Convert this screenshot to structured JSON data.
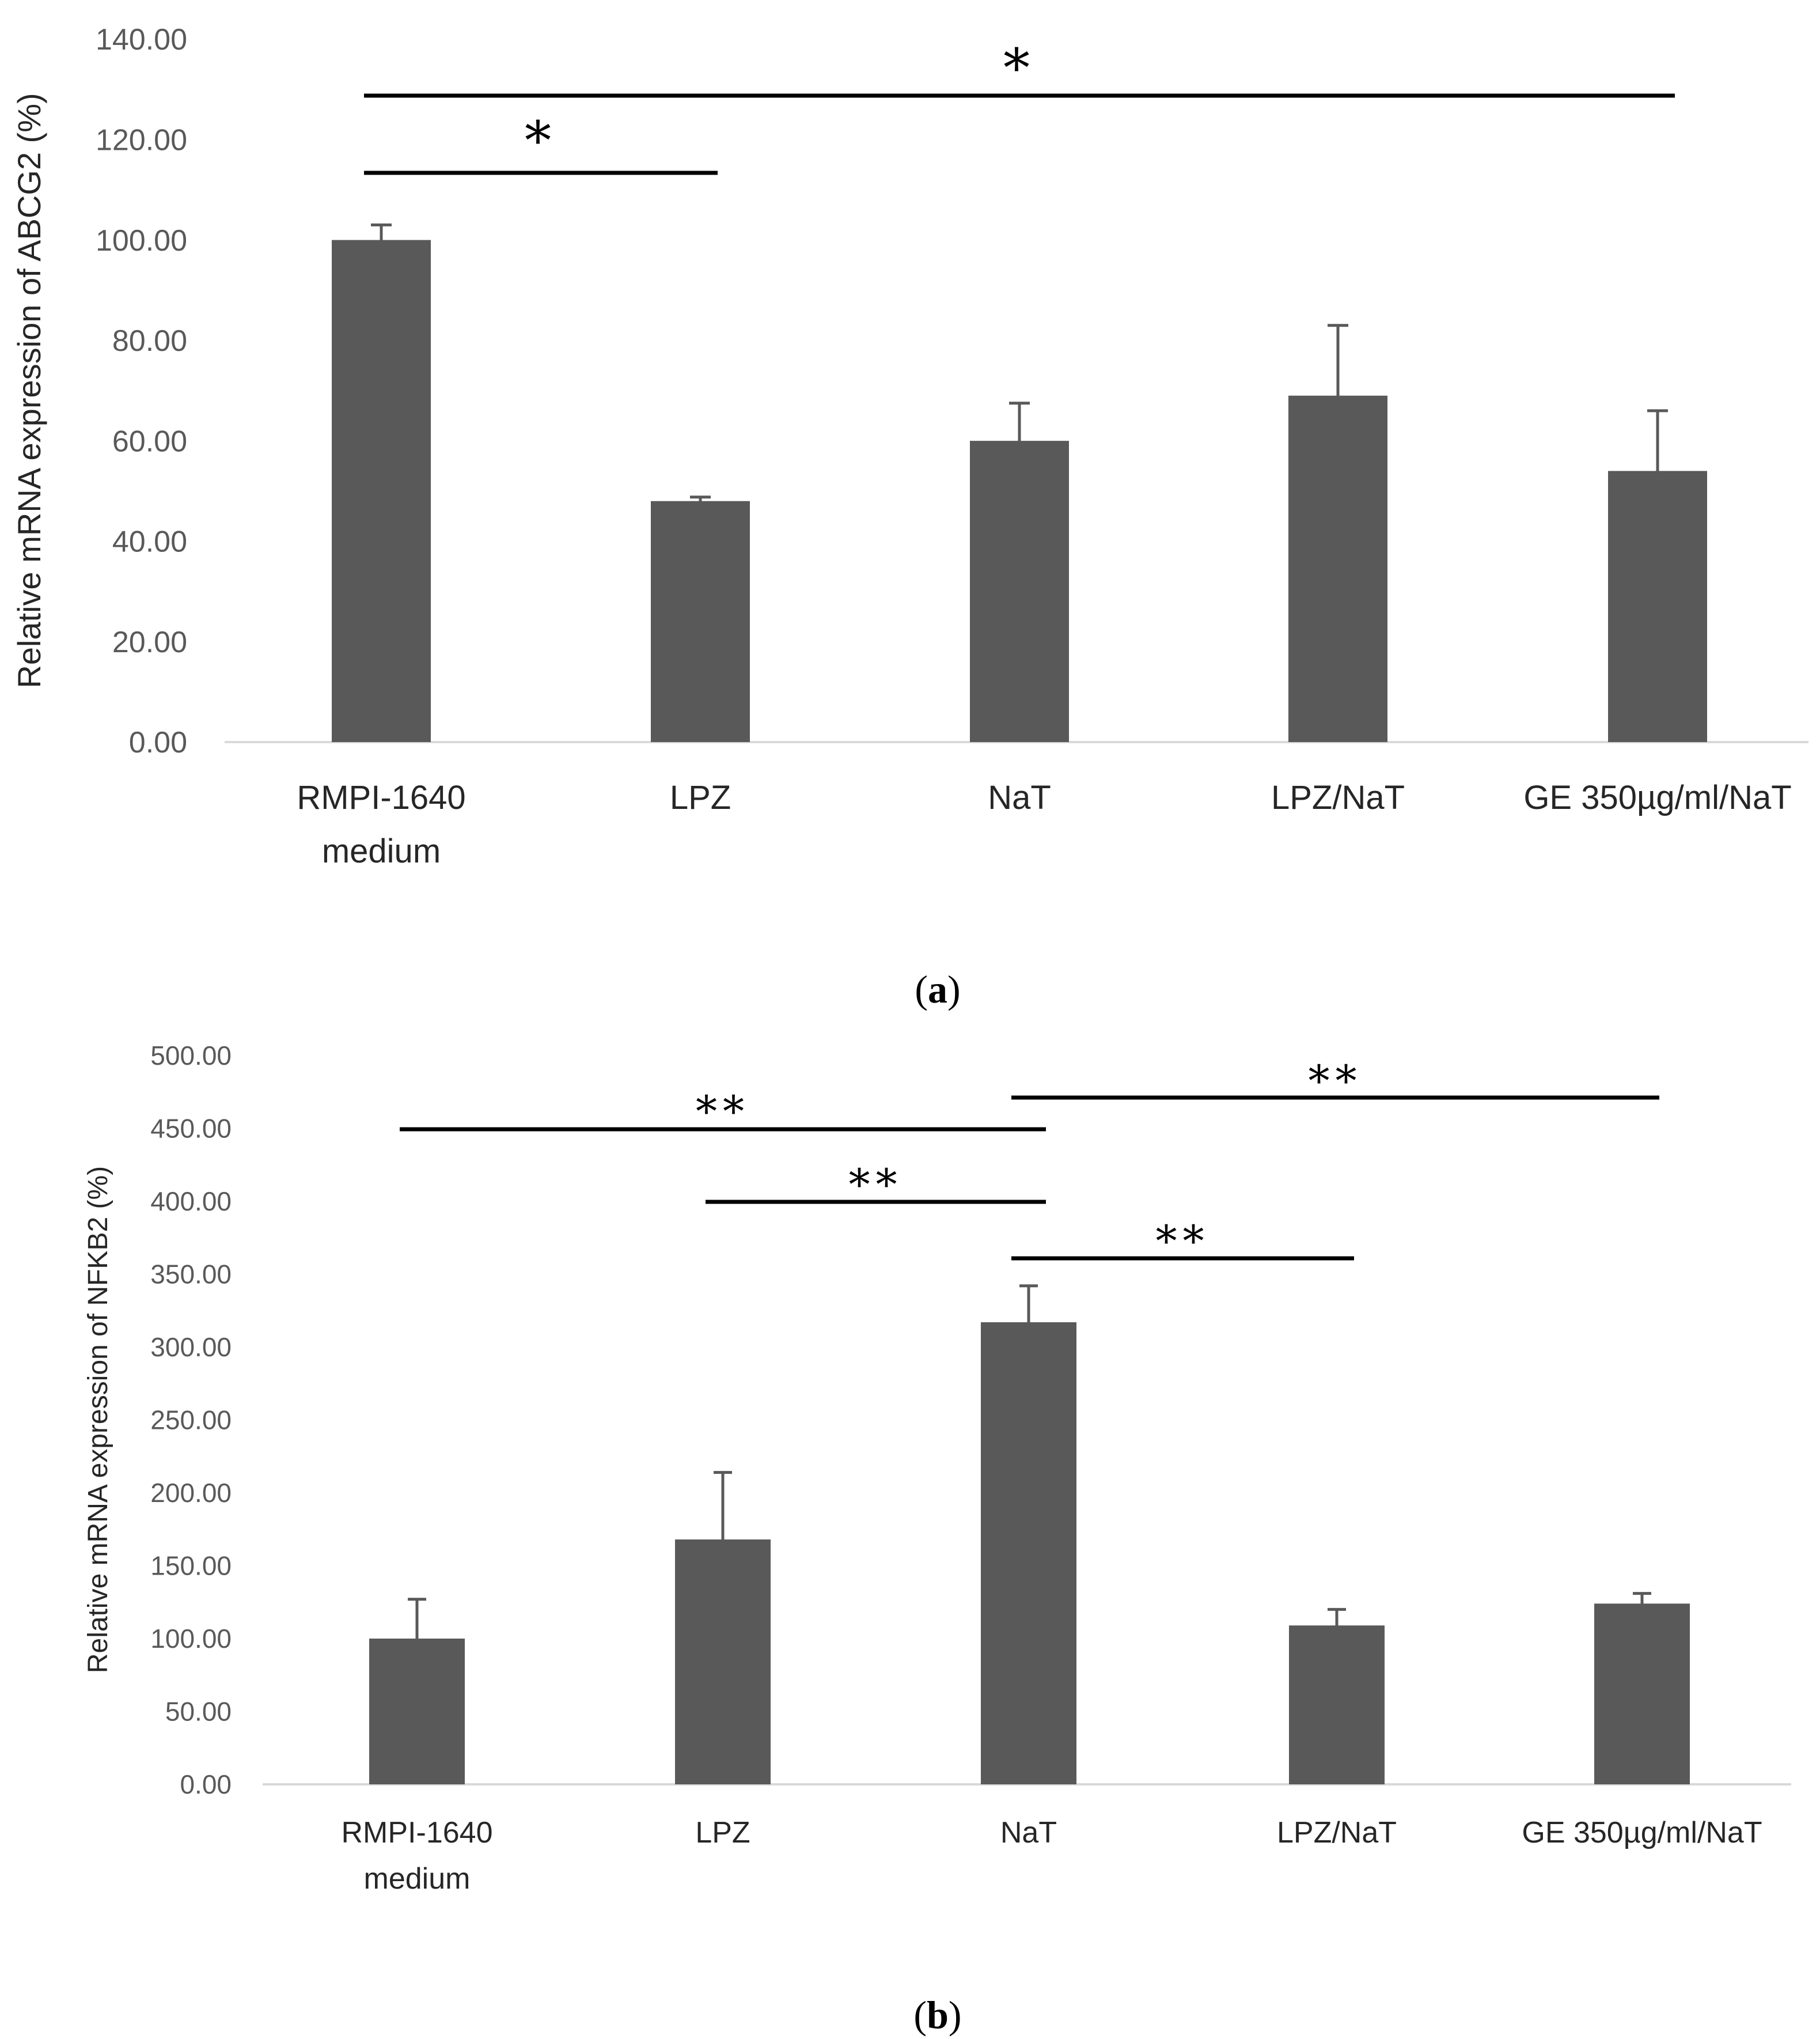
{
  "chart_data": [
    {
      "type": "bar",
      "panel_label": "a",
      "ylabel": "Relative mRNA expression of ABCG2 (%)",
      "ylim": [
        0,
        140
      ],
      "ytick_step": 20,
      "ytick_labels": [
        "0.00",
        "20.00",
        "40.00",
        "60.00",
        "80.00",
        "100.00",
        "120.00",
        "140.00"
      ],
      "categories": [
        [
          "RMPI-1640",
          "medium"
        ],
        [
          "LPZ"
        ],
        [
          "NaT"
        ],
        [
          "LPZ/NaT"
        ],
        [
          "GE 350µg/ml/NaT"
        ]
      ],
      "values": [
        100,
        48,
        60,
        69,
        54
      ],
      "errors": [
        3,
        0.8,
        7.5,
        14,
        12
      ],
      "bar_color": "#595959",
      "significance": [
        {
          "from": 0,
          "to": 1,
          "label": "*"
        },
        {
          "from": 0,
          "to": 4,
          "label": "*"
        }
      ]
    },
    {
      "type": "bar",
      "panel_label": "b",
      "ylabel": "Relative mRNA expression of NFKB2 (%)",
      "ylim": [
        0,
        500
      ],
      "ytick_step": 50,
      "ytick_labels": [
        "0.00",
        "50.00",
        "100.00",
        "150.00",
        "200.00",
        "250.00",
        "300.00",
        "350.00",
        "400.00",
        "450.00",
        "500.00"
      ],
      "categories": [
        [
          "RMPI-1640",
          "medium"
        ],
        [
          "LPZ"
        ],
        [
          "NaT"
        ],
        [
          "LPZ/NaT"
        ],
        [
          "GE 350µg/ml/NaT"
        ]
      ],
      "values": [
        100,
        168,
        317,
        109,
        124
      ],
      "errors": [
        27,
        46,
        25,
        11,
        7
      ],
      "bar_color": "#595959",
      "significance": [
        {
          "from": 0,
          "to": 2,
          "label": "**"
        },
        {
          "from": 1,
          "to": 2,
          "label": "**"
        },
        {
          "from": 2,
          "to": 3,
          "label": "**"
        },
        {
          "from": 2,
          "to": 4,
          "label": "**"
        }
      ]
    }
  ]
}
